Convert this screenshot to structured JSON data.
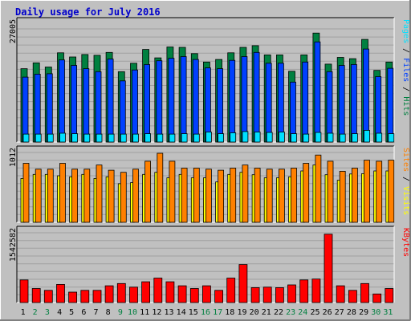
{
  "chart_data": {
    "type": "bar",
    "title": "Daily usage for July 2016",
    "days": [
      "1",
      "2",
      "3",
      "4",
      "5",
      "6",
      "7",
      "8",
      "9",
      "10",
      "11",
      "12",
      "13",
      "14",
      "15",
      "16",
      "17",
      "18",
      "19",
      "20",
      "21",
      "22",
      "23",
      "24",
      "25",
      "26",
      "27",
      "28",
      "29",
      "30",
      "31"
    ],
    "weekend_days": [
      "2",
      "3",
      "9",
      "10",
      "16",
      "17",
      "23",
      "24",
      "30",
      "31"
    ],
    "colors": {
      "title": "#0000cc",
      "weekday_label": "#000000",
      "weekend_label": "#008040",
      "hits": "#008040",
      "files": "#0040ff",
      "pages": "#00e0ff",
      "sites": "#ff8000",
      "visits": "#ffff00",
      "kbytes": "#ff0000",
      "background": "#c0c0c0",
      "plot_background": "#c0c0c0",
      "grid": "#a0a0a0",
      "axis": "#000000"
    },
    "panels": [
      {
        "name": "hits-files-pages",
        "ymax_label": "27005",
        "ymax": 27005,
        "legend": [
          {
            "text": "Pages",
            "color": "#00e0ff"
          },
          {
            "text": " / ",
            "color": "#000000"
          },
          {
            "text": "Files",
            "color": "#0040ff"
          },
          {
            "text": " / ",
            "color": "#000000"
          },
          {
            "text": "Hits",
            "color": "#008040"
          }
        ],
        "series": [
          {
            "name": "Hits",
            "color": "#008040",
            "values": [
              17500,
              18900,
              17900,
              21300,
              20300,
              20900,
              20700,
              21400,
              16800,
              18800,
              22100,
              20100,
              22700,
              22600,
              21100,
              19100,
              19700,
              21300,
              22600,
              23000,
              20800,
              20800,
              16900,
              20800,
              26000,
              18600,
              20200,
              19900,
              24500,
              17100,
              19100
            ]
          },
          {
            "name": "Files",
            "color": "#0040ff",
            "values": [
              15500,
              16200,
              16300,
              19600,
              18300,
              17500,
              16800,
              19800,
              14600,
              17200,
              18500,
              19400,
              20000,
              20400,
              19700,
              17700,
              17500,
              19500,
              20400,
              21400,
              18800,
              18800,
              14300,
              19100,
              23900,
              16800,
              18300,
              18500,
              22200,
              15600,
              17600
            ]
          },
          {
            "name": "Pages",
            "color": "#00e0ff",
            "values": [
              1900,
              1900,
              1900,
              2100,
              2000,
              1900,
              1900,
              1900,
              1900,
              1900,
              2000,
              1900,
              1900,
              2000,
              1900,
              2400,
              2000,
              2200,
              2500,
              2400,
              2300,
              2400,
              2000,
              1900,
              2300,
              2100,
              1900,
              2000,
              2800,
              2100,
              2000
            ]
          }
        ]
      },
      {
        "name": "sites-visits",
        "ymax_label": "1012",
        "ymax": 1012,
        "legend": [
          {
            "text": "Sites",
            "color": "#ff8000"
          },
          {
            "text": " / ",
            "color": "#000000"
          },
          {
            "text": "Visits",
            "color": "#ffff00"
          }
        ],
        "series": [
          {
            "name": "Sites",
            "color": "#ff8000",
            "values": [
              855,
              770,
              770,
              855,
              770,
              770,
              830,
              755,
              725,
              770,
              885,
              1000,
              885,
              785,
              785,
              770,
              755,
              785,
              830,
              785,
              770,
              770,
              785,
              855,
              975,
              885,
              740,
              785,
              900,
              885,
              900
            ]
          },
          {
            "name": "Visits",
            "color": "#ffff00",
            "values": [
              635,
              695,
              695,
              675,
              660,
              695,
              635,
              660,
              560,
              575,
              695,
              725,
              645,
              695,
              645,
              645,
              585,
              695,
              725,
              690,
              645,
              645,
              660,
              745,
              830,
              690,
              610,
              700,
              705,
              745,
              745
            ]
          }
        ]
      },
      {
        "name": "kbytes",
        "ymax_label": "1542582",
        "ymax": 1542582,
        "legend": [
          {
            "text": "KBytes",
            "color": "#ff0000"
          }
        ],
        "series": [
          {
            "name": "KBytes",
            "color": "#ff0000",
            "values": [
              500000,
              310000,
              270000,
              400000,
              230000,
              270000,
              270000,
              370000,
              420000,
              340000,
              460000,
              540000,
              460000,
              370000,
              310000,
              370000,
              270000,
              540000,
              840000,
              330000,
              340000,
              330000,
              390000,
              500000,
              520000,
              1510000,
              370000,
              270000,
              420000,
              190000,
              310000
            ]
          }
        ]
      }
    ]
  }
}
